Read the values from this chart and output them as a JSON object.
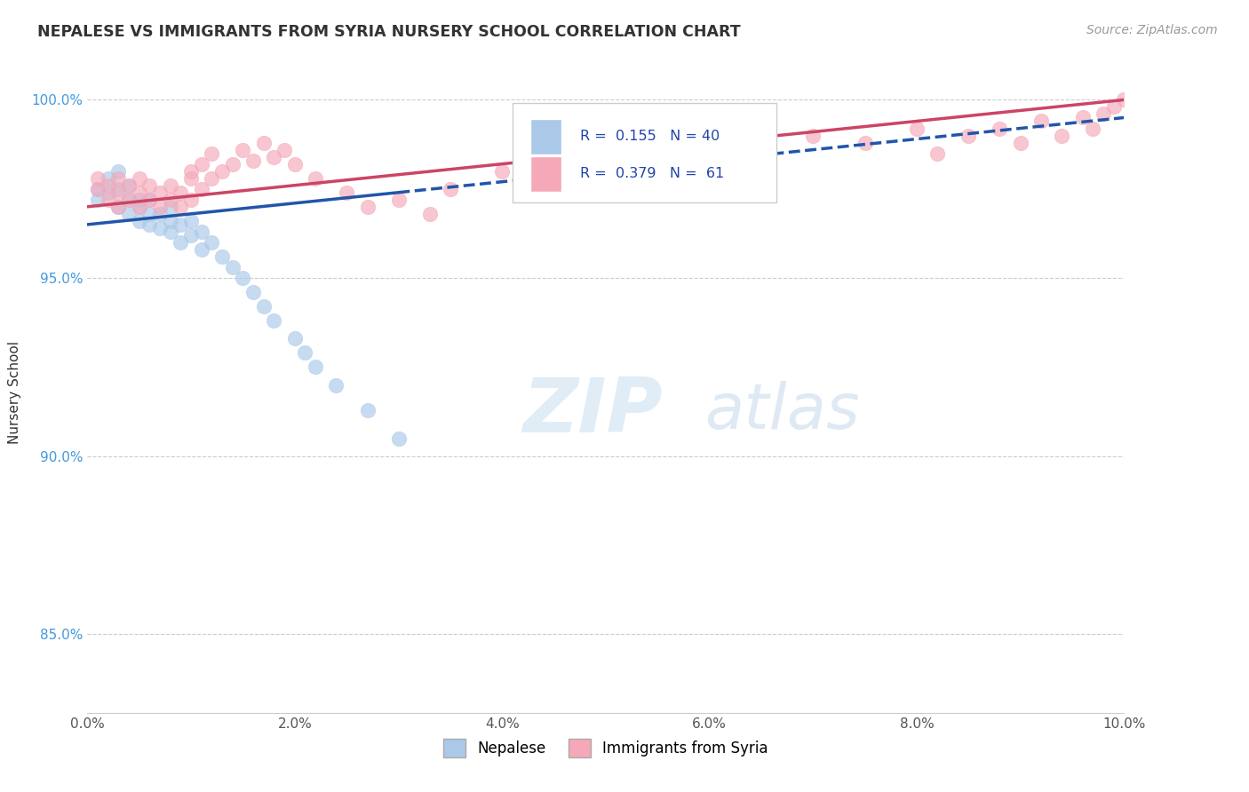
{
  "title": "NEPALESE VS IMMIGRANTS FROM SYRIA NURSERY SCHOOL CORRELATION CHART",
  "source": "Source: ZipAtlas.com",
  "ylabel": "Nursery School",
  "ytick_labels": [
    "85.0%",
    "90.0%",
    "95.0%",
    "100.0%"
  ],
  "ytick_values": [
    0.85,
    0.9,
    0.95,
    1.0
  ],
  "xlim": [
    0.0,
    0.1
  ],
  "ylim": [
    0.828,
    1.008
  ],
  "legend_label1": "Nepalese",
  "legend_label2": "Immigrants from Syria",
  "R1": "0.155",
  "N1": "40",
  "R2": "0.379",
  "N2": "61",
  "color_blue": "#aac9e8",
  "color_pink": "#f4a8b8",
  "line_color_blue": "#2255aa",
  "line_color_pink": "#cc4466",
  "nepalese_x": [
    0.001,
    0.001,
    0.002,
    0.002,
    0.003,
    0.003,
    0.003,
    0.004,
    0.004,
    0.004,
    0.005,
    0.005,
    0.005,
    0.006,
    0.006,
    0.006,
    0.007,
    0.007,
    0.008,
    0.008,
    0.008,
    0.009,
    0.009,
    0.01,
    0.01,
    0.011,
    0.011,
    0.012,
    0.013,
    0.014,
    0.015,
    0.016,
    0.017,
    0.018,
    0.02,
    0.021,
    0.022,
    0.024,
    0.027,
    0.03
  ],
  "nepalese_y": [
    0.975,
    0.972,
    0.978,
    0.974,
    0.97,
    0.975,
    0.98,
    0.968,
    0.972,
    0.976,
    0.97,
    0.966,
    0.972,
    0.968,
    0.965,
    0.972,
    0.964,
    0.968,
    0.963,
    0.966,
    0.97,
    0.96,
    0.965,
    0.962,
    0.966,
    0.958,
    0.963,
    0.96,
    0.956,
    0.953,
    0.95,
    0.946,
    0.942,
    0.938,
    0.933,
    0.929,
    0.925,
    0.92,
    0.913,
    0.905
  ],
  "syria_x": [
    0.001,
    0.001,
    0.002,
    0.002,
    0.003,
    0.003,
    0.003,
    0.004,
    0.004,
    0.005,
    0.005,
    0.005,
    0.006,
    0.006,
    0.007,
    0.007,
    0.008,
    0.008,
    0.009,
    0.009,
    0.01,
    0.01,
    0.01,
    0.011,
    0.011,
    0.012,
    0.012,
    0.013,
    0.014,
    0.015,
    0.016,
    0.017,
    0.018,
    0.019,
    0.02,
    0.022,
    0.025,
    0.027,
    0.03,
    0.033,
    0.035,
    0.04,
    0.045,
    0.05,
    0.055,
    0.06,
    0.065,
    0.07,
    0.075,
    0.08,
    0.082,
    0.085,
    0.088,
    0.09,
    0.092,
    0.094,
    0.096,
    0.097,
    0.098,
    0.099,
    0.1
  ],
  "syria_y": [
    0.975,
    0.978,
    0.972,
    0.976,
    0.97,
    0.974,
    0.978,
    0.972,
    0.976,
    0.97,
    0.974,
    0.978,
    0.972,
    0.976,
    0.97,
    0.974,
    0.972,
    0.976,
    0.97,
    0.974,
    0.978,
    0.972,
    0.98,
    0.975,
    0.982,
    0.978,
    0.985,
    0.98,
    0.982,
    0.986,
    0.983,
    0.988,
    0.984,
    0.986,
    0.982,
    0.978,
    0.974,
    0.97,
    0.972,
    0.968,
    0.975,
    0.98,
    0.985,
    0.975,
    0.98,
    0.988,
    0.985,
    0.99,
    0.988,
    0.992,
    0.985,
    0.99,
    0.992,
    0.988,
    0.994,
    0.99,
    0.995,
    0.992,
    0.996,
    0.998,
    1.0
  ],
  "line_blue_x0": 0.0,
  "line_blue_y0": 0.965,
  "line_blue_x1": 0.03,
  "line_blue_y1": 0.974,
  "line_blue_dash_x0": 0.03,
  "line_blue_dash_y0": 0.974,
  "line_blue_dash_x1": 0.1,
  "line_blue_dash_y1": 0.995,
  "line_pink_x0": 0.0,
  "line_pink_y0": 0.97,
  "line_pink_x1": 0.1,
  "line_pink_y1": 1.0
}
